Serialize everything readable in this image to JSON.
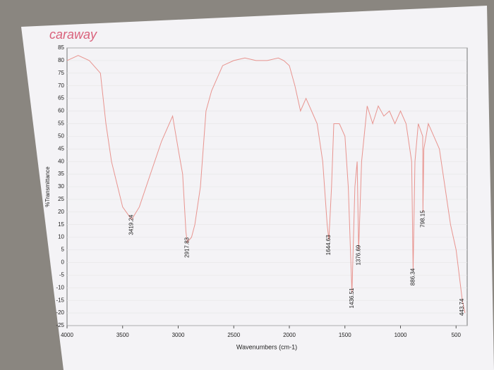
{
  "chart_data": {
    "type": "line",
    "title": "caraway",
    "ylabel": "%Transmittance",
    "xlabel": "Wavenumbers (cm-1)",
    "xlim": [
      4000,
      400
    ],
    "ylim": [
      -25,
      85
    ],
    "xticks": [
      4000,
      3500,
      3000,
      2500,
      2000,
      1500,
      1000,
      500
    ],
    "yticks": [
      -25,
      -20,
      -15,
      -10,
      -5,
      0,
      5,
      10,
      15,
      20,
      25,
      30,
      35,
      40,
      45,
      50,
      55,
      60,
      65,
      70,
      75,
      80,
      85
    ],
    "color": "#e8948f",
    "x": [
      4000,
      3900,
      3800,
      3700,
      3650,
      3600,
      3500,
      3419.24,
      3350,
      3250,
      3150,
      3050,
      3000,
      2960,
      2930,
      2917.83,
      2880,
      2850,
      2800,
      2750,
      2700,
      2600,
      2500,
      2400,
      2300,
      2200,
      2100,
      2050,
      2000,
      1950,
      1900,
      1850,
      1800,
      1750,
      1700,
      1660,
      1644.63,
      1620,
      1600,
      1550,
      1500,
      1470,
      1436.51,
      1410,
      1390,
      1376.69,
      1350,
      1300,
      1250,
      1200,
      1150,
      1100,
      1050,
      1000,
      950,
      900,
      886.34,
      870,
      840,
      800,
      798.15,
      790,
      750,
      700,
      650,
      600,
      550,
      500,
      443.74,
      420
    ],
    "values": [
      80,
      82,
      80,
      75,
      55,
      40,
      22,
      17,
      22,
      35,
      48,
      58,
      45,
      35,
      12,
      8,
      10,
      15,
      30,
      60,
      68,
      78,
      80,
      81,
      80,
      80,
      81,
      80,
      78,
      70,
      60,
      65,
      60,
      55,
      40,
      15,
      9,
      30,
      55,
      55,
      50,
      30,
      -12,
      30,
      40,
      5,
      40,
      62,
      55,
      62,
      58,
      60,
      55,
      60,
      55,
      40,
      -3,
      40,
      55,
      50,
      20,
      45,
      55,
      50,
      45,
      30,
      15,
      5,
      -15,
      -20
    ],
    "peaks": [
      3419.24,
      2917.83,
      1644.63,
      1436.51,
      1376.69,
      886.34,
      798.15,
      443.74
    ]
  }
}
